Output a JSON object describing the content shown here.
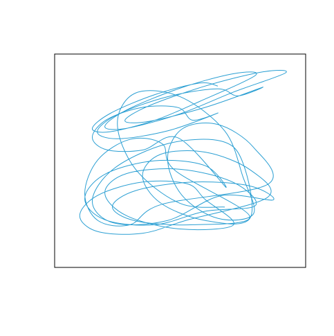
{
  "chart_data": {
    "type": "line",
    "color": "#2b9fd3",
    "xlim": [
      0,
      100
    ],
    "ylim": [
      0,
      100
    ],
    "x": [
      65,
      57.8,
      40,
      22.2,
      15,
      22.2,
      40,
      57.8,
      80,
      71.3,
      50,
      28.7,
      20,
      28.7,
      50,
      71.3,
      92,
      82.7,
      60,
      37.3,
      28,
      37.3,
      60,
      82.7,
      73,
      64.9,
      45,
      25.1,
      17,
      25.1,
      45,
      64.9,
      55,
      49.2,
      35,
      20.8,
      15,
      20.8,
      35,
      49.2,
      68,
      59.9,
      40,
      20.1,
      12,
      20.1,
      40,
      59.9,
      80,
      71.3,
      50,
      28.7,
      20,
      28.7,
      50,
      71.3,
      60,
      52.8,
      35,
      17.2,
      10,
      17.2,
      35,
      52.8,
      85,
      77.8,
      60,
      42.2,
      35,
      42.2,
      60,
      77.8,
      75,
      66.3,
      45,
      23.7,
      15,
      23.7,
      45,
      66.3,
      87,
      77.7,
      55,
      32.3,
      23,
      32.3,
      55,
      77.7,
      48,
      42.8,
      30,
      17.2,
      12,
      17.2,
      30,
      42.8,
      85,
      79.2,
      65,
      50.8,
      45,
      50.8,
      65,
      79.2,
      75,
      67.8,
      50,
      32.2,
      25,
      32.2,
      50,
      67.8
    ],
    "values": [
      85,
      86.4,
      81,
      72.2,
      65,
      63.6,
      69,
      77.8,
      90,
      90.8,
      84,
      73.8,
      66,
      65.2,
      72,
      82.2,
      91.2,
      91.6,
      85,
      75.6,
      68.8,
      68.4,
      75,
      84.4,
      80.4,
      83.7,
      80,
      71.7,
      63.6,
      60.3,
      64,
      72.3,
      69,
      74.9,
      75,
      69.3,
      61,
      55.1,
      55,
      60.7,
      37.8,
      47.7,
      50,
      43.7,
      32.2,
      22.3,
      20,
      26.3,
      29,
      39.8,
      46,
      44,
      35,
      24.2,
      18,
      20,
      31.8,
      39.2,
      40,
      33.8,
      24.2,
      16.8,
      16,
      22.2,
      33,
      45.8,
      54,
      53,
      43,
      30.2,
      22,
      23,
      49,
      59.2,
      58,
      46.4,
      31,
      20.8,
      22,
      33.6,
      31.6,
      38.2,
      40,
      36,
      28.4,
      21.8,
      20,
      24,
      45.4,
      58,
      60,
      50.4,
      34.6,
      22,
      20,
      29.6,
      39,
      56.3,
      67,
      64.9,
      51,
      33.7,
      23,
      25.1,
      42.5,
      63.9,
      80,
      81.7,
      67.5,
      46.1,
      30,
      28.3
    ]
  }
}
